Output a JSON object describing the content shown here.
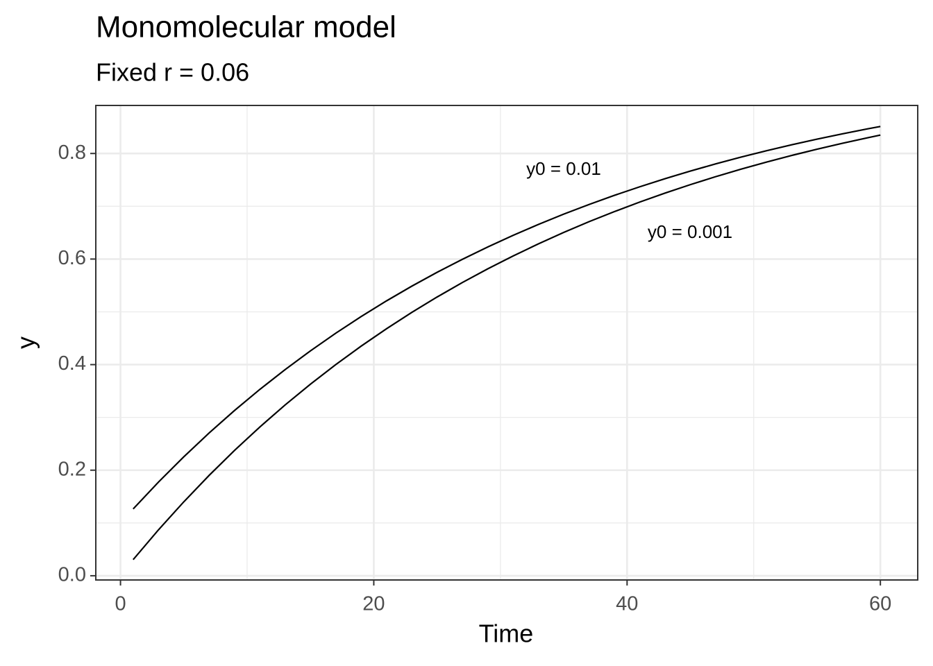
{
  "chart_data": {
    "type": "line",
    "title": "Monomolecular model",
    "subtitle": "Fixed r = 0.06",
    "x_label": "Time",
    "y_label": "y",
    "x": [
      1,
      3,
      5,
      7,
      9,
      11,
      13,
      15,
      17,
      19,
      21,
      23,
      25,
      27,
      29,
      31,
      33,
      35,
      37,
      39,
      41,
      43,
      45,
      47,
      49,
      51,
      53,
      55,
      57,
      59,
      60
    ],
    "series": [
      {
        "color": "#000000",
        "values": [
          0.1266,
          0.1775,
          0.2254,
          0.2705,
          0.313,
          0.353,
          0.3906,
          0.4261,
          0.4596,
          0.491,
          0.5207,
          0.5486,
          0.5749,
          0.5996,
          0.6229,
          0.6449,
          0.6656,
          0.6851,
          0.7034,
          0.7207,
          0.7369,
          0.7523,
          0.7667,
          0.7803,
          0.7931,
          0.8051,
          0.8165,
          0.8272,
          0.8372,
          0.8467,
          0.8512
        ]
      },
      {
        "color": "#000000",
        "values": [
          0.0305,
          0.087,
          0.1401,
          0.1902,
          0.2374,
          0.2818,
          0.3236,
          0.363,
          0.4001,
          0.435,
          0.4679,
          0.4989,
          0.5281,
          0.5556,
          0.5815,
          0.6058,
          0.6288,
          0.6504,
          0.6708,
          0.6899,
          0.708,
          0.725,
          0.741,
          0.7561,
          0.7703,
          0.7837,
          0.7963,
          0.8081,
          0.8193,
          0.8298,
          0.8349
        ]
      }
    ],
    "annotations": [
      "y0 = 0.01",
      "y0 = 0.001"
    ],
    "xlim": [
      -1.95,
      62.95
    ],
    "xticks": [
      0,
      20,
      40,
      60
    ],
    "ylim": [
      -0.008,
      0.891
    ],
    "yticks": [
      {
        "value": 0,
        "label": "0.0"
      },
      {
        "value": 0.2,
        "label": "0.2"
      },
      {
        "value": 0.4,
        "label": "0.4"
      },
      {
        "value": 0.6,
        "label": "0.6"
      },
      {
        "value": 0.8,
        "label": "0.8"
      }
    ],
    "grid": true
  }
}
